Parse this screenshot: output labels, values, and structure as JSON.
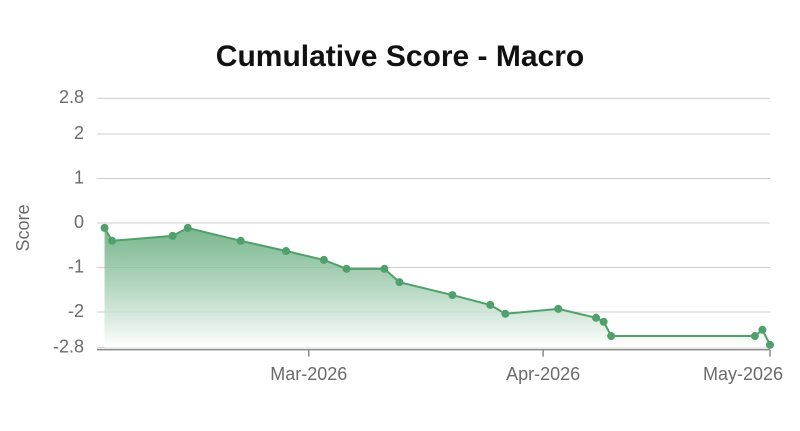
{
  "chart_data": {
    "type": "area",
    "title": "Cumulative Score - Macro",
    "y_label": "Score",
    "color": "#4fa06b",
    "x": [
      33,
      34,
      42,
      44,
      51,
      57,
      62,
      65,
      70,
      72,
      79,
      84,
      86,
      93,
      98,
      99,
      100,
      119,
      120,
      121
    ],
    "values": [
      -0.11,
      -0.4,
      -0.29,
      -0.11,
      -0.4,
      -0.63,
      -0.83,
      -1.03,
      -1.03,
      -1.33,
      -1.62,
      -1.84,
      -2.04,
      -1.93,
      -2.13,
      -2.22,
      -2.54,
      -2.54,
      -2.4,
      -2.74
    ],
    "xlim": [
      32,
      121
    ],
    "xticks": [
      {
        "value": 60,
        "label": "Mar-2026"
      },
      {
        "value": 91,
        "label": "Apr-2026"
      },
      {
        "value": 121,
        "label": "May-2026"
      }
    ],
    "ylim": [
      -2.8,
      2.8
    ],
    "yticks": [
      2.8,
      2,
      1,
      0,
      -1,
      -2,
      -2.8
    ],
    "grid": true
  }
}
